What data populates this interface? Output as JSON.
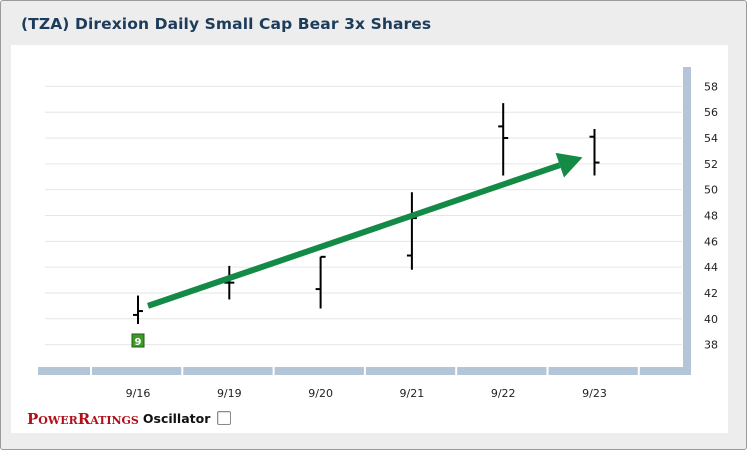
{
  "header": {
    "title": "(TZA) Direxion Daily Small Cap Bear 3x Shares"
  },
  "legend": {
    "brand_first_cap": "P",
    "brand_first_rest": "OWER",
    "brand_second_cap": "R",
    "brand_second_rest": "ATINGS",
    "oscillator_label": "Oscillator",
    "oscillator_checked": false
  },
  "colors": {
    "title": "#1d3c5c",
    "axis_band": "#b4c5d7",
    "arrow": "#138a45",
    "rating_badge": "#3f9a27",
    "bars": "#000000"
  },
  "chart_data": {
    "type": "ohlc",
    "title": "",
    "xlabel": "",
    "ylabel": "",
    "ylim": [
      36.5,
      59.5
    ],
    "yticks": [
      38,
      40,
      42,
      44,
      46,
      48,
      50,
      52,
      54,
      56,
      58
    ],
    "y_axis_position": "right",
    "grid": true,
    "categories": [
      "9/16",
      "9/19",
      "9/20",
      "9/21",
      "9/22",
      "9/23"
    ],
    "bars": [
      {
        "date": "9/16",
        "open": 40.3,
        "high": 41.8,
        "low": 39.6,
        "close": 40.6
      },
      {
        "date": "9/19",
        "open": 42.8,
        "high": 44.1,
        "low": 41.5,
        "close": 42.8
      },
      {
        "date": "9/20",
        "open": 42.3,
        "high": 44.8,
        "low": 40.8,
        "close": 44.8
      },
      {
        "date": "9/21",
        "open": 44.9,
        "high": 49.8,
        "low": 43.8,
        "close": 47.8
      },
      {
        "date": "9/22",
        "open": 54.9,
        "high": 56.7,
        "low": 51.1,
        "close": 54.0
      },
      {
        "date": "9/23",
        "open": 54.1,
        "high": 54.7,
        "low": 51.1,
        "close": 52.1
      }
    ],
    "annotations": [
      {
        "type": "rating_badge",
        "date": "9/16",
        "text": "9"
      },
      {
        "type": "trend_arrow",
        "from": {
          "date": "9/16",
          "value": 41.0
        },
        "to": {
          "date": "9/23",
          "value": 52.5
        }
      }
    ]
  }
}
